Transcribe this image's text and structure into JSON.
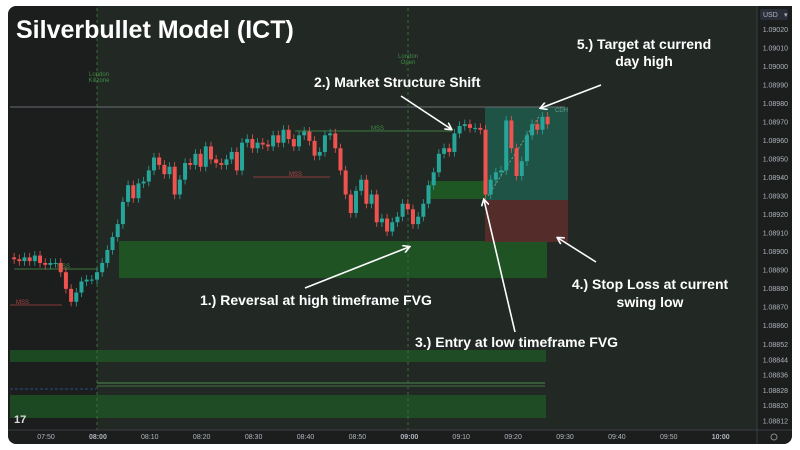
{
  "chart_data": {
    "type": "candlestick",
    "title": "Silverbullet Model (ICT)",
    "currency": "USD",
    "interval_minutes": 1,
    "start_time": "07:44",
    "closes": [
      1.08895,
      1.08894,
      1.08896,
      1.08894,
      1.08897,
      1.08893,
      1.08892,
      1.08893,
      1.08893,
      1.08888,
      1.08879,
      1.08872,
      1.08877,
      1.08883,
      1.08884,
      1.08884,
      1.08888,
      1.08893,
      1.089,
      1.08907,
      1.08914,
      1.08926,
      1.08935,
      1.08928,
      1.08936,
      1.08937,
      1.08943,
      1.0895,
      1.08946,
      1.08941,
      1.08945,
      1.0893,
      1.08938,
      1.08947,
      1.08946,
      1.08952,
      1.08945,
      1.08956,
      1.08949,
      1.08947,
      1.08946,
      1.08949,
      1.08953,
      1.08943,
      1.08958,
      1.0896,
      1.08955,
      1.08958,
      1.08957,
      1.08956,
      1.08962,
      1.08958,
      1.08965,
      1.0896,
      1.08956,
      1.08962,
      1.08964,
      1.08959,
      1.08951,
      1.08953,
      1.08962,
      1.08963,
      1.08955,
      1.08943,
      1.0893,
      1.0892,
      1.08932,
      1.08938,
      1.08925,
      1.0893,
      1.08915,
      1.08917,
      1.0891,
      1.08915,
      1.08918,
      1.08925,
      1.08922,
      1.08914,
      1.08918,
      1.08925,
      1.08935,
      1.08942,
      1.08952,
      1.08955,
      1.08953,
      1.08963,
      1.08967,
      1.08968,
      1.08966,
      1.08966,
      1.08965,
      1.0893,
      1.08938,
      1.08942,
      1.08943,
      1.0897,
      1.08955,
      1.0894,
      1.08948,
      1.08962,
      1.08968,
      1.08965,
      1.08972,
      1.08968
    ],
    "y_ticks": [
      "1.09020",
      "1.09010",
      "1.09000",
      "1.08990",
      "1.08980",
      "1.08970",
      "1.08960",
      "1.08950",
      "1.08940",
      "1.08930",
      "1.08920",
      "1.08910",
      "1.08900",
      "1.08890",
      "1.08880",
      "1.08870",
      "1.08860",
      "1.08852",
      "1.08844",
      "1.08836",
      "1.08828",
      "1.08820",
      "1.08812"
    ],
    "x_ticks": [
      {
        "label": "07:50",
        "bold": false
      },
      {
        "label": "08:00",
        "bold": true
      },
      {
        "label": "08:10",
        "bold": false
      },
      {
        "label": "08:20",
        "bold": false
      },
      {
        "label": "08:30",
        "bold": false
      },
      {
        "label": "08:40",
        "bold": false
      },
      {
        "label": "08:50",
        "bold": false
      },
      {
        "label": "09:00",
        "bold": true
      },
      {
        "label": "09:10",
        "bold": false
      },
      {
        "label": "09:20",
        "bold": false
      },
      {
        "label": "09:30",
        "bold": false
      },
      {
        "label": "09:40",
        "bold": false
      },
      {
        "label": "09:50",
        "bold": false
      },
      {
        "label": "10:00",
        "bold": true
      }
    ],
    "levels": {
      "day_high": 1.08977,
      "htf_fvg": [
        1.08885,
        1.08905
      ],
      "ltf_fvg": [
        1.08928,
        1.08938
      ],
      "target": 1.08977,
      "entry": 1.08927,
      "stop": 1.08904
    },
    "colors": {
      "up": "#26a69a",
      "down": "#ef5350",
      "background": "#1f2421",
      "fvg": "#1e5b25",
      "target_zone": "#1f5a4c",
      "stop_zone": "#5a2e2c"
    },
    "session_labels": {
      "killzone": [
        "London",
        "Killzone"
      ],
      "open": [
        "London",
        "Open"
      ]
    },
    "markers": {
      "mss": "MSS",
      "cdh": "CDH"
    },
    "annotations": {
      "a1": "1.) Reversal at high timeframe FVG",
      "a2": "2.) Market Structure Shift",
      "a3": "3.) Entry at low timeframe FVG",
      "a4_line1": "4.) Stop Loss at current",
      "a4_line2": "swing low",
      "a5_line1": "5.) Target at currend",
      "a5_line2": "day high"
    },
    "logo": "TV"
  }
}
